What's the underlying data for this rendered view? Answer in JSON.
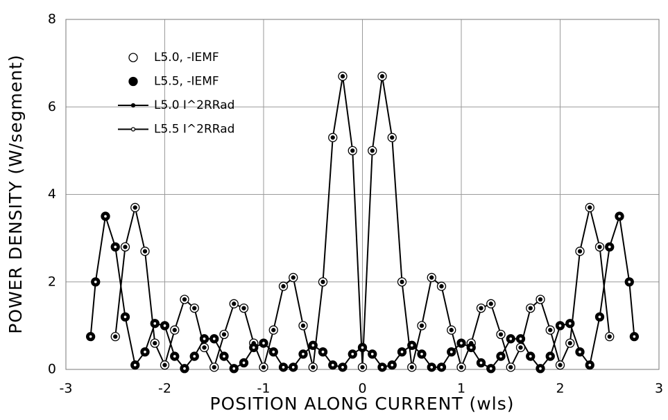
{
  "chart_data": {
    "type": "line",
    "xlabel": "POSITION  ALONG  CURRENT  (wls)",
    "ylabel": "POWER  DENSITY  (W/segment)",
    "xlim": [
      -3,
      3
    ],
    "xticks": [
      -3,
      -2,
      -1,
      0,
      1,
      2,
      3
    ],
    "ylim": [
      0,
      8
    ],
    "yticks": [
      0,
      2,
      4,
      6,
      8
    ],
    "grid": true,
    "legend": "upper left",
    "series": [
      {
        "name": "L5.0, -IEMF",
        "color": "#000000",
        "marker": "open",
        "line": false,
        "x": [
          -2.5,
          -2.4,
          -2.3,
          -2.2,
          -2.1,
          -2.0,
          -1.9,
          -1.8,
          -1.7,
          -1.6,
          -1.5,
          -1.4,
          -1.3,
          -1.2,
          -1.1,
          -1.0,
          -0.9,
          -0.8,
          -0.7,
          -0.6,
          -0.5,
          -0.4,
          -0.3,
          -0.2,
          -0.1,
          0,
          0.1,
          0.2,
          0.3,
          0.4,
          0.5,
          0.6,
          0.7,
          0.8,
          0.9,
          1.0,
          1.1,
          1.2,
          1.3,
          1.4,
          1.5,
          1.6,
          1.7,
          1.8,
          1.9,
          2.0,
          2.1,
          2.2,
          2.3,
          2.4,
          2.5
        ],
        "values": [
          0.75,
          2.8,
          3.7,
          2.7,
          0.6,
          0.1,
          0.9,
          1.6,
          1.4,
          0.5,
          0.05,
          0.8,
          1.5,
          1.4,
          0.6,
          0.05,
          0.9,
          1.9,
          2.1,
          1.0,
          0.05,
          2.0,
          5.3,
          6.7,
          5.0,
          0.05,
          5.0,
          6.7,
          5.3,
          2.0,
          0.05,
          1.0,
          2.1,
          1.9,
          0.9,
          0.05,
          0.6,
          1.4,
          1.5,
          0.8,
          0.05,
          0.5,
          1.4,
          1.6,
          0.9,
          0.1,
          0.6,
          2.7,
          3.7,
          2.8,
          0.75
        ]
      },
      {
        "name": "L5.5, -IEMF",
        "color": "#000000",
        "marker": "filled",
        "line": false,
        "x": [
          -2.75,
          -2.7,
          -2.6,
          -2.5,
          -2.4,
          -2.3,
          -2.2,
          -2.1,
          -2.0,
          -1.9,
          -1.8,
          -1.7,
          -1.6,
          -1.5,
          -1.4,
          -1.3,
          -1.2,
          -1.1,
          -1.0,
          -0.9,
          -0.8,
          -0.7,
          -0.6,
          -0.5,
          -0.4,
          -0.3,
          -0.2,
          -0.1,
          0,
          0.1,
          0.2,
          0.3,
          0.4,
          0.5,
          0.6,
          0.7,
          0.8,
          0.9,
          1.0,
          1.1,
          1.2,
          1.3,
          1.4,
          1.5,
          1.6,
          1.7,
          1.8,
          1.9,
          2.0,
          2.1,
          2.2,
          2.3,
          2.4,
          2.5,
          2.6,
          2.7,
          2.75
        ],
        "values": [
          0.75,
          2.0,
          3.5,
          2.8,
          1.2,
          0.1,
          0.4,
          1.05,
          1.0,
          0.3,
          0.02,
          0.3,
          0.7,
          0.7,
          0.3,
          0.02,
          0.15,
          0.5,
          0.6,
          0.4,
          0.05,
          0.05,
          0.35,
          0.55,
          0.4,
          0.1,
          0.05,
          0.35,
          0.5,
          0.35,
          0.05,
          0.1,
          0.4,
          0.55,
          0.35,
          0.05,
          0.05,
          0.4,
          0.6,
          0.5,
          0.15,
          0.02,
          0.3,
          0.7,
          0.7,
          0.3,
          0.02,
          0.3,
          1.0,
          1.05,
          0.4,
          0.1,
          1.2,
          2.8,
          3.5,
          2.0,
          0.75
        ]
      },
      {
        "name": "L5.0 I^2RRad",
        "color": "#000000",
        "marker": "filled",
        "line": true,
        "x": [
          -2.5,
          -2.4,
          -2.3,
          -2.2,
          -2.1,
          -2.0,
          -1.9,
          -1.8,
          -1.7,
          -1.6,
          -1.5,
          -1.4,
          -1.3,
          -1.2,
          -1.1,
          -1.0,
          -0.9,
          -0.8,
          -0.7,
          -0.6,
          -0.5,
          -0.4,
          -0.3,
          -0.2,
          -0.1,
          0,
          0.1,
          0.2,
          0.3,
          0.4,
          0.5,
          0.6,
          0.7,
          0.8,
          0.9,
          1.0,
          1.1,
          1.2,
          1.3,
          1.4,
          1.5,
          1.6,
          1.7,
          1.8,
          1.9,
          2.0,
          2.1,
          2.2,
          2.3,
          2.4,
          2.5
        ],
        "values": [
          0.75,
          2.8,
          3.7,
          2.7,
          0.6,
          0.1,
          0.9,
          1.6,
          1.4,
          0.5,
          0.05,
          0.8,
          1.5,
          1.4,
          0.6,
          0.05,
          0.9,
          1.9,
          2.1,
          1.0,
          0.05,
          2.0,
          5.3,
          6.7,
          5.0,
          0.05,
          5.0,
          6.7,
          5.3,
          2.0,
          0.05,
          1.0,
          2.1,
          1.9,
          0.9,
          0.05,
          0.6,
          1.4,
          1.5,
          0.8,
          0.05,
          0.5,
          1.4,
          1.6,
          0.9,
          0.1,
          0.6,
          2.7,
          3.7,
          2.8,
          0.75
        ]
      },
      {
        "name": "L5.5 I^2RRad",
        "color": "#000000",
        "marker": "open",
        "line": true,
        "x": [
          -2.75,
          -2.7,
          -2.6,
          -2.5,
          -2.4,
          -2.3,
          -2.2,
          -2.1,
          -2.0,
          -1.9,
          -1.8,
          -1.7,
          -1.6,
          -1.5,
          -1.4,
          -1.3,
          -1.2,
          -1.1,
          -1.0,
          -0.9,
          -0.8,
          -0.7,
          -0.6,
          -0.5,
          -0.4,
          -0.3,
          -0.2,
          -0.1,
          0,
          0.1,
          0.2,
          0.3,
          0.4,
          0.5,
          0.6,
          0.7,
          0.8,
          0.9,
          1.0,
          1.1,
          1.2,
          1.3,
          1.4,
          1.5,
          1.6,
          1.7,
          1.8,
          1.9,
          2.0,
          2.1,
          2.2,
          2.3,
          2.4,
          2.5,
          2.6,
          2.7,
          2.75
        ],
        "values": [
          0.75,
          2.0,
          3.5,
          2.8,
          1.2,
          0.1,
          0.4,
          1.05,
          1.0,
          0.3,
          0.02,
          0.3,
          0.7,
          0.7,
          0.3,
          0.02,
          0.15,
          0.5,
          0.6,
          0.4,
          0.05,
          0.05,
          0.35,
          0.55,
          0.4,
          0.1,
          0.05,
          0.35,
          0.5,
          0.35,
          0.05,
          0.1,
          0.4,
          0.55,
          0.35,
          0.05,
          0.05,
          0.4,
          0.6,
          0.5,
          0.15,
          0.02,
          0.3,
          0.7,
          0.7,
          0.3,
          0.02,
          0.3,
          1.0,
          1.05,
          0.4,
          0.1,
          1.2,
          2.8,
          3.5,
          2.0,
          0.75
        ]
      }
    ]
  }
}
